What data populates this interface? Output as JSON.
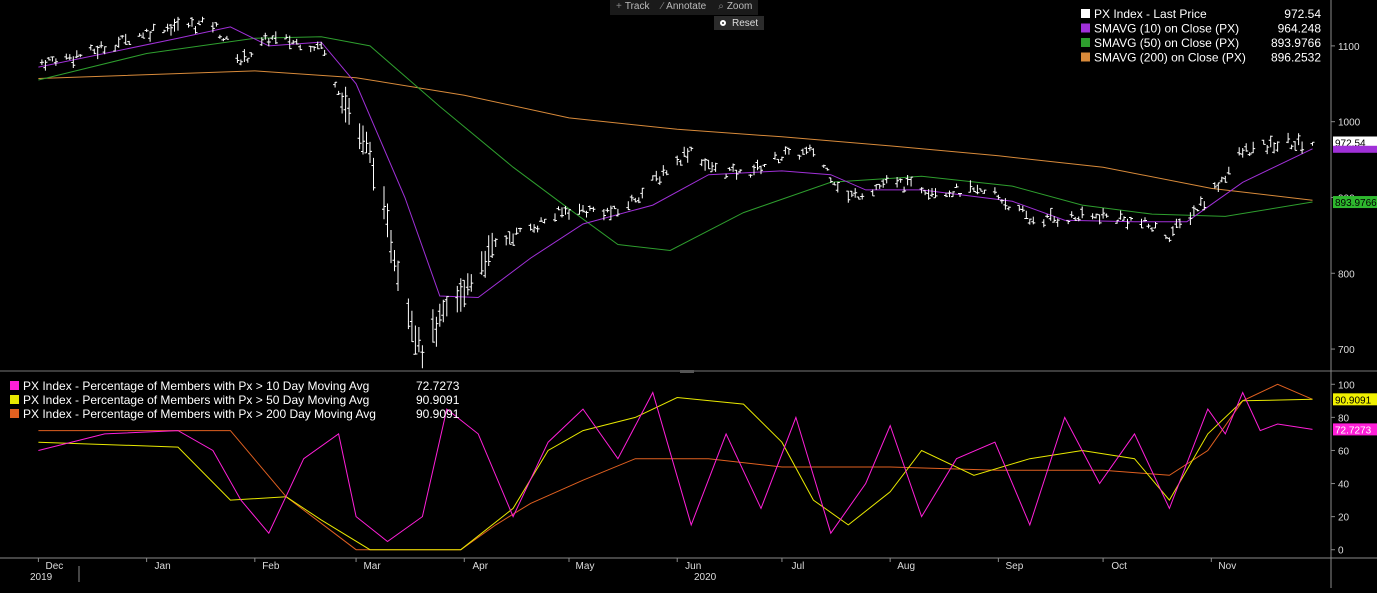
{
  "toolbar": {
    "track_label": "Track",
    "annotate_label": "Annotate",
    "zoom_label": "Zoom",
    "reset_label": "Reset"
  },
  "colors": {
    "price": "#ffffff",
    "sma10": "#a030d8",
    "sma50": "#2e9e2e",
    "sma200": "#d88a3a",
    "pct10": "#ff1fd8",
    "pct50": "#e8e800",
    "pct200": "#e06020",
    "axis": "#8a8a8a"
  },
  "chart_data": [
    {
      "type": "line",
      "panel": "upper",
      "ylim": [
        675,
        1150
      ],
      "yticks": [
        700,
        800,
        900,
        1000,
        1100
      ],
      "grid": false,
      "legend_position": "top-right",
      "x_months": [
        "Dec",
        "Jan",
        "Feb",
        "Mar",
        "Apr",
        "May",
        "Jun",
        "Jul",
        "Aug",
        "Sep",
        "Oct",
        "Nov"
      ],
      "x_years": [
        "2019",
        "2020"
      ],
      "legend": [
        {
          "label": "PX Index - Last Price",
          "value": "972.54"
        },
        {
          "label": "SMAVG (10)  on Close (PX)",
          "value": "964.248"
        },
        {
          "label": "SMAVG (50)  on Close (PX)",
          "value": "893.9766"
        },
        {
          "label": "SMAVG (200)  on Close (PX)",
          "value": "896.2532"
        }
      ],
      "last_value_tags": [
        "972.54",
        "893.9766"
      ],
      "price_anchors": [
        [
          "2019-12-01",
          1078
        ],
        [
          "2019-12-15",
          1090
        ],
        [
          "2020-01-05",
          1125
        ],
        [
          "2020-01-20",
          1130
        ],
        [
          "2020-01-28",
          1080
        ],
        [
          "2020-02-05",
          1110
        ],
        [
          "2020-02-20",
          1100
        ],
        [
          "2020-02-28",
          1010
        ],
        [
          "2020-03-05",
          960
        ],
        [
          "2020-03-15",
          760
        ],
        [
          "2020-03-20",
          700
        ],
        [
          "2020-03-26",
          745
        ],
        [
          "2020-03-31",
          770
        ],
        [
          "2020-04-10",
          840
        ],
        [
          "2020-04-20",
          860
        ],
        [
          "2020-05-01",
          885
        ],
        [
          "2020-05-15",
          880
        ],
        [
          "2020-05-25",
          920
        ],
        [
          "2020-06-05",
          965
        ],
        [
          "2020-06-10",
          940
        ],
        [
          "2020-06-20",
          930
        ],
        [
          "2020-07-01",
          955
        ],
        [
          "2020-07-10",
          960
        ],
        [
          "2020-07-20",
          900
        ],
        [
          "2020-08-01",
          920
        ],
        [
          "2020-08-15",
          910
        ],
        [
          "2020-08-31",
          905
        ],
        [
          "2020-09-10",
          870
        ],
        [
          "2020-09-30",
          875
        ],
        [
          "2020-10-10",
          870
        ],
        [
          "2020-10-20",
          850
        ],
        [
          "2020-10-31",
          900
        ],
        [
          "2020-11-10",
          960
        ],
        [
          "2020-11-20",
          970
        ],
        [
          "2020-11-30",
          972.54
        ]
      ],
      "sma10_anchors": [
        [
          "2019-12-01",
          1072
        ],
        [
          "2020-01-10",
          1110
        ],
        [
          "2020-01-25",
          1125
        ],
        [
          "2020-02-05",
          1100
        ],
        [
          "2020-02-20",
          1105
        ],
        [
          "2020-03-01",
          1050
        ],
        [
          "2020-03-15",
          900
        ],
        [
          "2020-03-25",
          770
        ],
        [
          "2020-04-05",
          768
        ],
        [
          "2020-04-20",
          820
        ],
        [
          "2020-05-05",
          865
        ],
        [
          "2020-05-25",
          890
        ],
        [
          "2020-06-10",
          930
        ],
        [
          "2020-07-01",
          935
        ],
        [
          "2020-07-15",
          930
        ],
        [
          "2020-07-25",
          910
        ],
        [
          "2020-08-10",
          910
        ],
        [
          "2020-09-05",
          895
        ],
        [
          "2020-09-20",
          870
        ],
        [
          "2020-10-10",
          868
        ],
        [
          "2020-10-25",
          868
        ],
        [
          "2020-11-10",
          920
        ],
        [
          "2020-11-30",
          964.248
        ]
      ],
      "sma50_anchors": [
        [
          "2019-12-01",
          1055
        ],
        [
          "2020-01-01",
          1090
        ],
        [
          "2020-02-01",
          1110
        ],
        [
          "2020-02-20",
          1112
        ],
        [
          "2020-03-05",
          1100
        ],
        [
          "2020-03-25",
          1020
        ],
        [
          "2020-04-15",
          940
        ],
        [
          "2020-05-01",
          885
        ],
        [
          "2020-05-15",
          838
        ],
        [
          "2020-05-30",
          830
        ],
        [
          "2020-06-20",
          880
        ],
        [
          "2020-07-15",
          920
        ],
        [
          "2020-08-10",
          928
        ],
        [
          "2020-09-05",
          915
        ],
        [
          "2020-09-25",
          890
        ],
        [
          "2020-10-15",
          878
        ],
        [
          "2020-11-05",
          875
        ],
        [
          "2020-11-30",
          893.9766
        ]
      ],
      "sma200_anchors": [
        [
          "2019-12-01",
          1057
        ],
        [
          "2020-02-01",
          1067
        ],
        [
          "2020-03-01",
          1058
        ],
        [
          "2020-04-01",
          1035
        ],
        [
          "2020-05-01",
          1005
        ],
        [
          "2020-06-01",
          990
        ],
        [
          "2020-07-01",
          980
        ],
        [
          "2020-08-01",
          968
        ],
        [
          "2020-09-01",
          955
        ],
        [
          "2020-10-01",
          940
        ],
        [
          "2020-11-01",
          912
        ],
        [
          "2020-11-30",
          896.2532
        ]
      ]
    },
    {
      "type": "line",
      "panel": "lower",
      "ylim": [
        -5,
        105
      ],
      "yticks": [
        0,
        20,
        40,
        60,
        80,
        100
      ],
      "grid": false,
      "legend_position": "top-left",
      "legend": [
        {
          "label": "PX Index - Percentage of Members with Px > 10 Day Moving Avg",
          "value": "72.7273"
        },
        {
          "label": "PX Index - Percentage of Members with Px > 50 Day Moving Avg",
          "value": "90.9091"
        },
        {
          "label": "PX Index - Percentage of Members with Px > 200 Day Moving Avg",
          "value": "90.9091"
        }
      ],
      "last_value_tags": [
        "90.9091",
        "72.7273"
      ],
      "pct10_anchors": [
        [
          "2019-12-01",
          60
        ],
        [
          "2019-12-20",
          70
        ],
        [
          "2020-01-10",
          72
        ],
        [
          "2020-01-20",
          60
        ],
        [
          "2020-01-28",
          30
        ],
        [
          "2020-02-05",
          10
        ],
        [
          "2020-02-15",
          55
        ],
        [
          "2020-02-25",
          70
        ],
        [
          "2020-03-01",
          20
        ],
        [
          "2020-03-10",
          5
        ],
        [
          "2020-03-20",
          20
        ],
        [
          "2020-03-27",
          85
        ],
        [
          "2020-04-05",
          70
        ],
        [
          "2020-04-15",
          20
        ],
        [
          "2020-04-25",
          65
        ],
        [
          "2020-05-05",
          85
        ],
        [
          "2020-05-15",
          55
        ],
        [
          "2020-05-25",
          95
        ],
        [
          "2020-06-05",
          15
        ],
        [
          "2020-06-15",
          70
        ],
        [
          "2020-06-25",
          25
        ],
        [
          "2020-07-05",
          80
        ],
        [
          "2020-07-15",
          10
        ],
        [
          "2020-07-25",
          40
        ],
        [
          "2020-08-01",
          75
        ],
        [
          "2020-08-10",
          20
        ],
        [
          "2020-08-20",
          55
        ],
        [
          "2020-08-31",
          65
        ],
        [
          "2020-09-10",
          15
        ],
        [
          "2020-09-20",
          80
        ],
        [
          "2020-09-30",
          40
        ],
        [
          "2020-10-10",
          70
        ],
        [
          "2020-10-20",
          25
        ],
        [
          "2020-10-31",
          85
        ],
        [
          "2020-11-05",
          70
        ],
        [
          "2020-11-10",
          95
        ],
        [
          "2020-11-15",
          72
        ],
        [
          "2020-11-20",
          76
        ],
        [
          "2020-11-30",
          72.7273
        ]
      ],
      "pct50_anchors": [
        [
          "2019-12-01",
          65
        ],
        [
          "2020-01-10",
          62
        ],
        [
          "2020-01-25",
          30
        ],
        [
          "2020-02-10",
          32
        ],
        [
          "2020-02-20",
          18
        ],
        [
          "2020-03-05",
          0
        ],
        [
          "2020-03-31",
          0
        ],
        [
          "2020-04-15",
          25
        ],
        [
          "2020-04-25",
          60
        ],
        [
          "2020-05-05",
          72
        ],
        [
          "2020-05-20",
          80
        ],
        [
          "2020-06-01",
          92
        ],
        [
          "2020-06-20",
          88
        ],
        [
          "2020-07-01",
          65
        ],
        [
          "2020-07-10",
          30
        ],
        [
          "2020-07-20",
          15
        ],
        [
          "2020-08-01",
          35
        ],
        [
          "2020-08-10",
          60
        ],
        [
          "2020-08-25",
          45
        ],
        [
          "2020-09-10",
          55
        ],
        [
          "2020-09-25",
          60
        ],
        [
          "2020-10-10",
          55
        ],
        [
          "2020-10-20",
          30
        ],
        [
          "2020-10-31",
          70
        ],
        [
          "2020-11-10",
          90
        ],
        [
          "2020-11-30",
          90.9091
        ]
      ],
      "pct200_anchors": [
        [
          "2019-12-01",
          72
        ],
        [
          "2020-01-25",
          72
        ],
        [
          "2020-02-10",
          32
        ],
        [
          "2020-03-01",
          0
        ],
        [
          "2020-03-31",
          0
        ],
        [
          "2020-04-10",
          15
        ],
        [
          "2020-04-20",
          28
        ],
        [
          "2020-05-05",
          42
        ],
        [
          "2020-05-20",
          55
        ],
        [
          "2020-06-10",
          55
        ],
        [
          "2020-07-01",
          50
        ],
        [
          "2020-08-01",
          50
        ],
        [
          "2020-09-01",
          48
        ],
        [
          "2020-10-01",
          48
        ],
        [
          "2020-10-20",
          45
        ],
        [
          "2020-10-31",
          60
        ],
        [
          "2020-11-10",
          90
        ],
        [
          "2020-11-20",
          100
        ],
        [
          "2020-11-30",
          90.9091
        ]
      ]
    }
  ]
}
